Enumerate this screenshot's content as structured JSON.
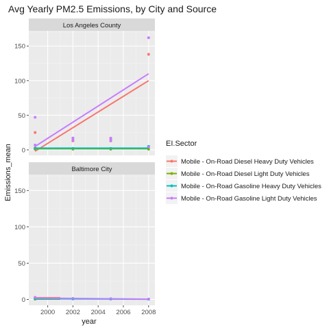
{
  "colors": {
    "panel_bg": "#ebebeb",
    "strip_bg": "#d9d9d9",
    "grid_major": "#ffffff",
    "grid_minor": "#f4f4f4",
    "text": "#1a1a1a",
    "tick_text": "#4d4d4d",
    "series": [
      "#f8766d",
      "#7cae00",
      "#00bfc4",
      "#c77cff"
    ]
  },
  "chart_data": {
    "type": "scatter",
    "title": "Avg Yearly PM2.5 Emissions, by City and Source",
    "xlabel": "year",
    "ylabel": "Emissions_mean",
    "xlim": [
      1998.5,
      2008.5
    ],
    "ylim": [
      -8,
      172
    ],
    "x_ticks": [
      2000,
      2002,
      2004,
      2006,
      2008
    ],
    "y_ticks": [
      0,
      50,
      100,
      150
    ],
    "grid": true,
    "legend": {
      "title": "EI.Sector",
      "position": "right",
      "entries": [
        "Mobile - On-Road Diesel Heavy Duty Vehicles",
        "Mobile - On-Road Diesel Light Duty Vehicles",
        "Mobile - On-Road Gasoline Heavy Duty Vehicles",
        "Mobile - On-Road Gasoline Light Duty Vehicles"
      ]
    },
    "facets": [
      {
        "label": "Los Angeles County",
        "series": [
          {
            "points": [
              [
                1999,
                25
              ],
              [
                1999,
                3
              ],
              [
                2002,
                17
              ],
              [
                2002,
                13
              ],
              [
                2005,
                16
              ],
              [
                2005,
                13
              ],
              [
                2008,
                138
              ],
              [
                2008,
                5
              ]
            ],
            "trend": [
              [
                1999,
                -2
              ],
              [
                2008,
                100
              ]
            ]
          },
          {
            "points": [
              [
                1999,
                1
              ],
              [
                2002,
                1
              ],
              [
                2005,
                1
              ],
              [
                2008,
                1
              ]
            ],
            "trend": [
              [
                1999,
                1.5
              ],
              [
                2008,
                1.5
              ]
            ]
          },
          {
            "points": [
              [
                1999,
                2
              ],
              [
                2002,
                2
              ],
              [
                2005,
                2
              ],
              [
                2008,
                5
              ]
            ],
            "trend": [
              [
                1999,
                2.5
              ],
              [
                2008,
                2.5
              ]
            ]
          },
          {
            "points": [
              [
                1999,
                47
              ],
              [
                1999,
                7
              ],
              [
                2002,
                17
              ],
              [
                2002,
                14
              ],
              [
                2005,
                17
              ],
              [
                2005,
                13
              ],
              [
                2008,
                162
              ],
              [
                2008,
                4
              ]
            ],
            "trend": [
              [
                1999,
                5
              ],
              [
                2008,
                110
              ]
            ]
          }
        ]
      },
      {
        "label": "Baltimore City",
        "series": [
          {
            "points": [
              [
                1999,
                2
              ]
            ],
            "trend": [
              [
                1999,
                2.5
              ],
              [
                2001,
                2.5
              ]
            ]
          },
          {
            "points": [
              [
                1999,
                0.5
              ]
            ],
            "trend": [
              [
                1999,
                0.5
              ],
              [
                2001,
                0.5
              ]
            ]
          },
          {
            "points": [
              [
                1999,
                1
              ],
              [
                2002,
                0.8
              ],
              [
                2005,
                0.6
              ],
              [
                2008,
                0.4
              ]
            ],
            "trend": [
              [
                1999,
                1.0
              ],
              [
                2008,
                0.4
              ]
            ]
          },
          {
            "points": [
              [
                1999,
                3
              ],
              [
                2002,
                1.5
              ],
              [
                2005,
                1.2
              ],
              [
                2008,
                0.6
              ]
            ],
            "trend": [
              [
                1999,
                2.0
              ],
              [
                2008,
                0.5
              ]
            ]
          }
        ]
      }
    ]
  }
}
